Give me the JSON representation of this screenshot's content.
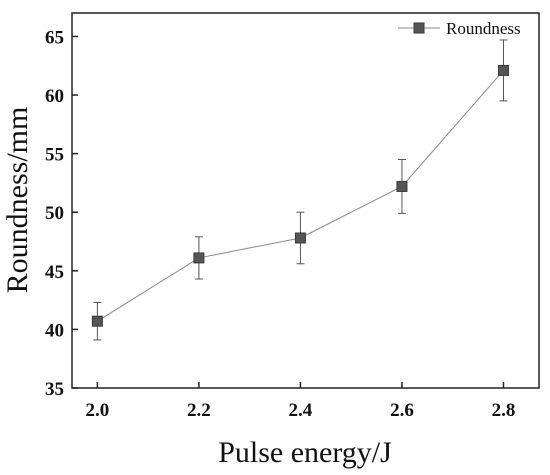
{
  "chart_data": {
    "type": "line",
    "xlabel": "Pulse energy/J",
    "ylabel": "Roundness/mm",
    "xlim": [
      1.95,
      2.87
    ],
    "ylim": [
      35,
      67
    ],
    "x_ticks": [
      "2.0",
      "2.2",
      "2.4",
      "2.6",
      "2.8"
    ],
    "y_ticks": [
      "35",
      "40",
      "45",
      "50",
      "55",
      "60",
      "65"
    ],
    "grid": false,
    "legend_position": "top-right",
    "series": [
      {
        "name": "Roundness",
        "marker": "square",
        "color": "#555555",
        "x": [
          2.0,
          2.2,
          2.4,
          2.6,
          2.8
        ],
        "y": [
          40.7,
          46.1,
          47.8,
          52.2,
          62.1
        ],
        "error": [
          1.6,
          1.8,
          2.2,
          2.3,
          2.6
        ]
      }
    ]
  }
}
